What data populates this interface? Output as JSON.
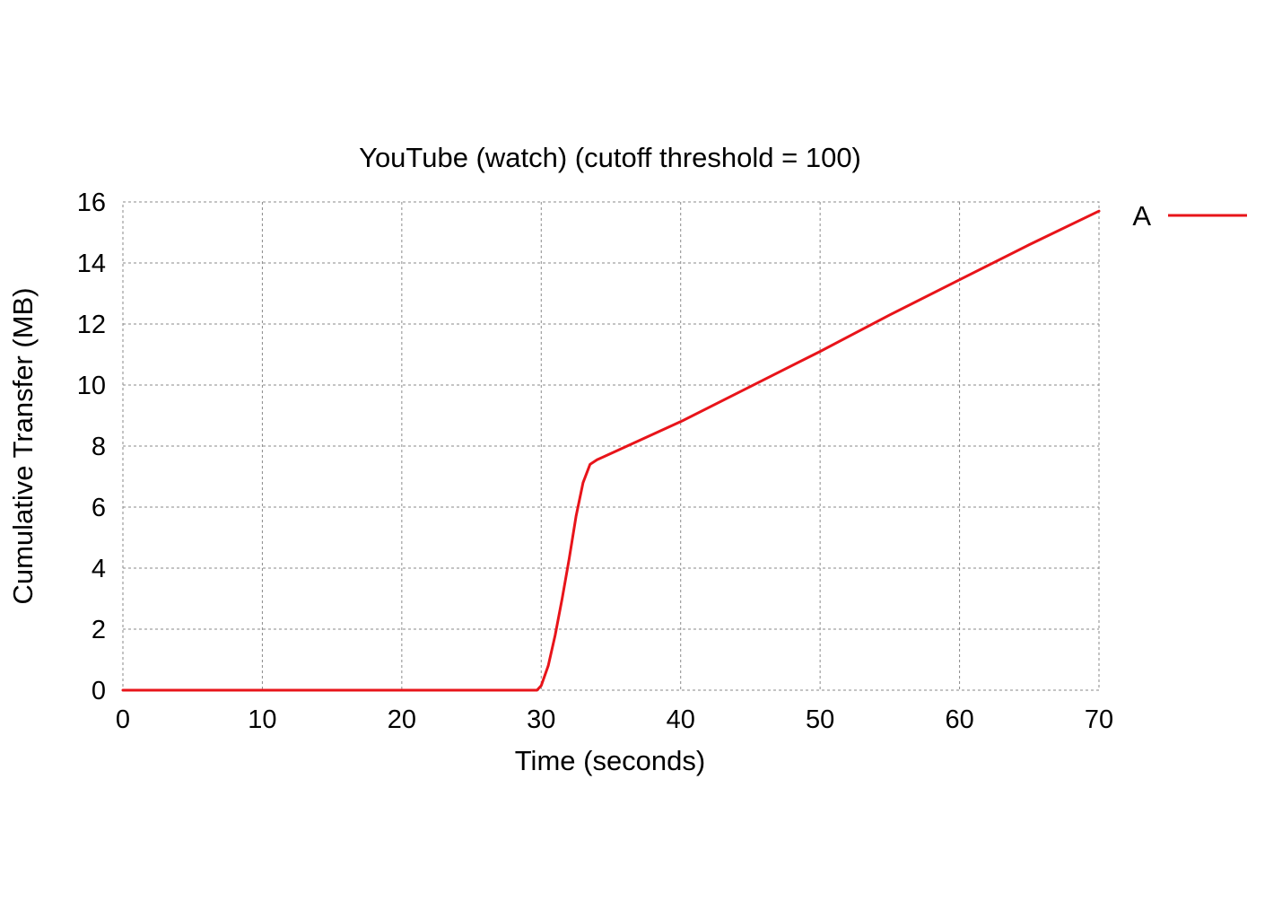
{
  "chart_data": {
    "type": "line",
    "title": "YouTube (watch) (cutoff threshold = 100)",
    "xlabel": "Time (seconds)",
    "ylabel": "Cumulative Transfer (MB)",
    "xlim": [
      0,
      70
    ],
    "ylim": [
      0,
      16
    ],
    "xticks": [
      0,
      10,
      20,
      30,
      40,
      50,
      60,
      70
    ],
    "yticks": [
      0,
      2,
      4,
      6,
      8,
      10,
      12,
      14,
      16
    ],
    "grid": true,
    "grid_style": "dashed",
    "legend_position": "right",
    "series": [
      {
        "name": "A",
        "color": "#e8141a",
        "x": [
          0,
          29.7,
          30.0,
          30.5,
          31.0,
          31.5,
          32.0,
          32.5,
          33.0,
          33.5,
          34.0,
          40,
          45,
          50,
          55,
          60,
          65,
          70
        ],
        "y": [
          0,
          0,
          0.15,
          0.8,
          1.8,
          3.0,
          4.3,
          5.7,
          6.8,
          7.4,
          7.55,
          8.8,
          9.95,
          11.1,
          12.3,
          13.45,
          14.6,
          15.7
        ]
      }
    ]
  }
}
